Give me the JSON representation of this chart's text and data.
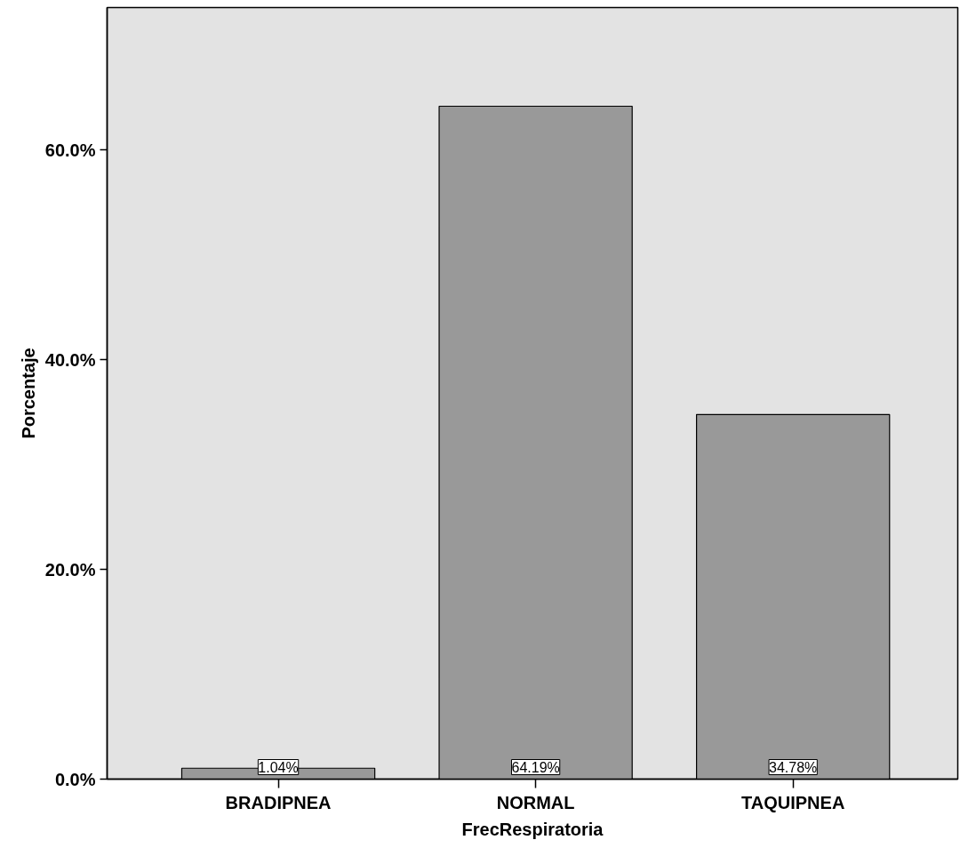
{
  "chart_data": {
    "type": "bar",
    "xlabel": "FrecRespiratoria",
    "ylabel": "Porcentaje",
    "categories": [
      "BRADIPNEA",
      "NORMAL",
      "TAQUIPNEA"
    ],
    "values": [
      1.04,
      64.19,
      34.78
    ],
    "color": "#999999",
    "value_labels": [
      "1.04%",
      "64.19%",
      "34.78%"
    ],
    "ylim": [
      0,
      73.6
    ],
    "yticks": [
      {
        "value": 0,
        "label": "0.0%"
      },
      {
        "value": 20,
        "label": "20.0%"
      },
      {
        "value": 40,
        "label": "40.0%"
      },
      {
        "value": 60,
        "label": "60.0%"
      }
    ],
    "grid": false
  }
}
